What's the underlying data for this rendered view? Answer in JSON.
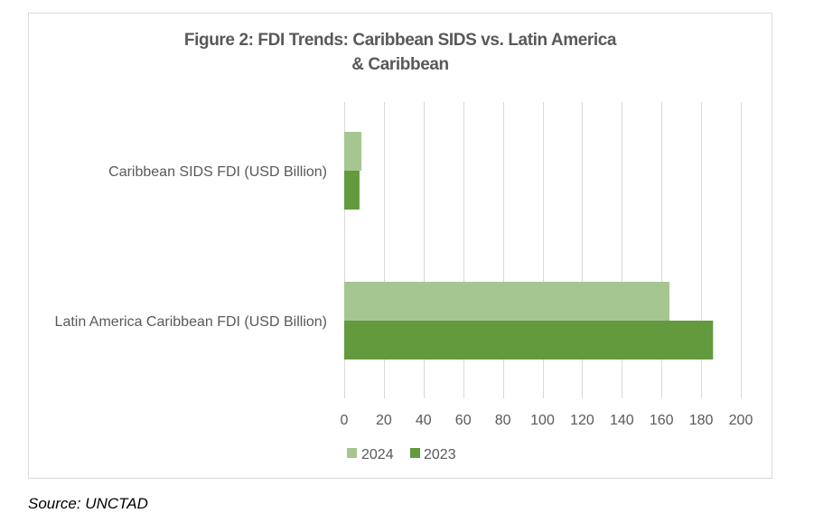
{
  "chart_data": {
    "type": "bar",
    "orientation": "horizontal",
    "title": "Figure 2: FDI Trends: Caribbean SIDS vs. Latin America & Caribbean",
    "title_lines": [
      "Figure 2: FDI Trends: Caribbean SIDS vs. Latin America",
      "& Caribbean"
    ],
    "categories": [
      "Caribbean SIDS FDI (USD Billion)",
      "Latin America Caribbean FDI (USD Billion)"
    ],
    "series": [
      {
        "name": "2024",
        "color": "#a5c690",
        "values": [
          8.7,
          164
        ]
      },
      {
        "name": "2023",
        "color": "#629a3d",
        "values": [
          7.7,
          186
        ]
      }
    ],
    "xlabel": "",
    "ylabel": "",
    "xlim": [
      0,
      200
    ],
    "xticks": [
      0,
      20,
      40,
      60,
      80,
      100,
      120,
      140,
      160,
      180,
      200
    ],
    "grid": true,
    "legend": "bottom"
  },
  "source": "Source: UNCTAD"
}
